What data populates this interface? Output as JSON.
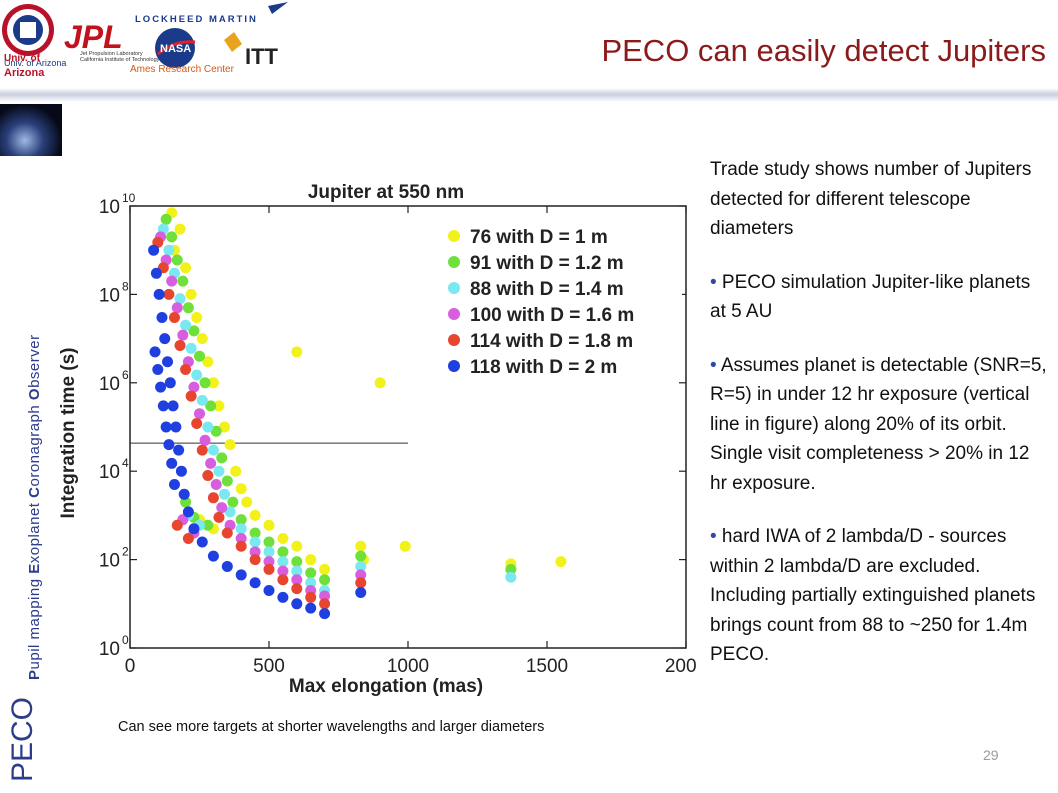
{
  "logos": {
    "univ_label_1": "Univ. of",
    "univ_label_2": "Arizona",
    "univ_small": "Univ. of Arizona",
    "jpl": "JPL",
    "jpl_sub1": "Jet Propulsion Laboratory",
    "jpl_sub2": "California Institute of Technology",
    "lockheed": "LOCKHEED MARTIN",
    "nasa": "NASA",
    "ames": "Ames Research Center",
    "itt": "ITT"
  },
  "slide_title": "PECO can easily detect Jupiters",
  "side_tag": {
    "big": "PECO",
    "small_parts": [
      {
        "cap": "P",
        "rest": "upil mapping "
      },
      {
        "cap": "E",
        "rest": "xoplanet "
      },
      {
        "cap": "C",
        "rest": "oronagraph "
      },
      {
        "cap": "O",
        "rest": "bserver"
      }
    ]
  },
  "colors": {
    "title": "#8b1a1a",
    "accent": "#2d3d8c",
    "yellow": "#f2f21a",
    "green": "#6fe03a",
    "cyan": "#7ae8f0",
    "magenta": "#d85ee0",
    "red": "#e8452e",
    "blue": "#1f3fe0"
  },
  "chart_data": {
    "type": "scatter",
    "title": "Jupiter at 550 nm",
    "xlabel": "Max elongation (mas)",
    "ylabel": "Integration time (s)",
    "xlim": [
      0,
      2000
    ],
    "ylim_log10": [
      0,
      10
    ],
    "y_scale": "log",
    "x_ticks": [
      "0",
      "500",
      "1000",
      "1500",
      "2000"
    ],
    "y_tick_exponents": [
      "0",
      "2",
      "4",
      "6",
      "8",
      "10"
    ],
    "y_tick_base": "10",
    "threshold_line": {
      "y": 43200,
      "x_range": [
        0,
        1000
      ]
    },
    "legend_position": "top-right",
    "series": [
      {
        "name": "76 with D = 1 m",
        "color": "#f2f21a",
        "points": [
          [
            150,
            7000000000.0
          ],
          [
            180,
            3000000000.0
          ],
          [
            160,
            1000000000.0
          ],
          [
            200,
            400000000.0
          ],
          [
            220,
            100000000.0
          ],
          [
            240,
            30000000.0
          ],
          [
            260,
            10000000.0
          ],
          [
            280,
            3000000.0
          ],
          [
            300,
            1000000.0
          ],
          [
            320,
            300000.0
          ],
          [
            340,
            100000.0
          ],
          [
            360,
            40000.0
          ],
          [
            380,
            10000.0
          ],
          [
            400,
            4000.0
          ],
          [
            420,
            2000.0
          ],
          [
            450,
            1000.0
          ],
          [
            500,
            600
          ],
          [
            550,
            300
          ],
          [
            600,
            200
          ],
          [
            650,
            100
          ],
          [
            700,
            60
          ],
          [
            830,
            200
          ],
          [
            900,
            1000000.0
          ],
          [
            600,
            5000000.0
          ],
          [
            990,
            200
          ],
          [
            1370,
            80
          ],
          [
            1550,
            90
          ],
          [
            840,
            100
          ],
          [
            300,
            500
          ],
          [
            250,
            800
          ]
        ]
      },
      {
        "name": "91 with D = 1.2 m",
        "color": "#6fe03a",
        "points": [
          [
            130,
            5000000000.0
          ],
          [
            150,
            2000000000.0
          ],
          [
            170,
            600000000.0
          ],
          [
            190,
            200000000.0
          ],
          [
            210,
            50000000.0
          ],
          [
            230,
            15000000.0
          ],
          [
            250,
            4000000.0
          ],
          [
            270,
            1000000.0
          ],
          [
            290,
            300000.0
          ],
          [
            310,
            80000.0
          ],
          [
            330,
            20000.0
          ],
          [
            350,
            6000.0
          ],
          [
            370,
            2000.0
          ],
          [
            400,
            800
          ],
          [
            450,
            400
          ],
          [
            500,
            250
          ],
          [
            550,
            150
          ],
          [
            600,
            90
          ],
          [
            650,
            50
          ],
          [
            700,
            35
          ],
          [
            830,
            120
          ],
          [
            1370,
            60
          ],
          [
            280,
            600
          ],
          [
            230,
            900
          ],
          [
            200,
            2000.0
          ]
        ]
      },
      {
        "name": "88 with D = 1.4 m",
        "color": "#7ae8f0",
        "points": [
          [
            120,
            3000000000.0
          ],
          [
            140,
            1000000000.0
          ],
          [
            160,
            300000000.0
          ],
          [
            180,
            80000000.0
          ],
          [
            200,
            20000000.0
          ],
          [
            220,
            6000000.0
          ],
          [
            240,
            1500000.0
          ],
          [
            260,
            400000.0
          ],
          [
            280,
            100000.0
          ],
          [
            300,
            30000.0
          ],
          [
            320,
            10000.0
          ],
          [
            340,
            3000.0
          ],
          [
            360,
            1200.0
          ],
          [
            400,
            500
          ],
          [
            450,
            250
          ],
          [
            500,
            150
          ],
          [
            550,
            90
          ],
          [
            600,
            55
          ],
          [
            650,
            30
          ],
          [
            700,
            20
          ],
          [
            830,
            70
          ],
          [
            1370,
            40
          ],
          [
            250,
            600
          ],
          [
            210,
            1000.0
          ]
        ]
      },
      {
        "name": "100 with D = 1.6 m",
        "color": "#d85ee0",
        "points": [
          [
            110,
            2000000000.0
          ],
          [
            130,
            600000000.0
          ],
          [
            150,
            200000000.0
          ],
          [
            170,
            50000000.0
          ],
          [
            190,
            12000000.0
          ],
          [
            210,
            3000000.0
          ],
          [
            230,
            800000.0
          ],
          [
            250,
            200000.0
          ],
          [
            270,
            50000.0
          ],
          [
            290,
            15000.0
          ],
          [
            310,
            5000.0
          ],
          [
            330,
            1500.0
          ],
          [
            360,
            600
          ],
          [
            400,
            300
          ],
          [
            450,
            150
          ],
          [
            500,
            90
          ],
          [
            550,
            55
          ],
          [
            600,
            35
          ],
          [
            650,
            20
          ],
          [
            700,
            15
          ],
          [
            830,
            45
          ],
          [
            230,
            400
          ],
          [
            190,
            800
          ]
        ]
      },
      {
        "name": "114 with D = 1.8 m",
        "color": "#e8452e",
        "points": [
          [
            100,
            1500000000.0
          ],
          [
            120,
            400000000.0
          ],
          [
            140,
            100000000.0
          ],
          [
            160,
            30000000.0
          ],
          [
            180,
            7000000.0
          ],
          [
            200,
            2000000.0
          ],
          [
            220,
            500000.0
          ],
          [
            240,
            120000.0
          ],
          [
            260,
            30000.0
          ],
          [
            280,
            8000.0
          ],
          [
            300,
            2500.0
          ],
          [
            320,
            900
          ],
          [
            350,
            400
          ],
          [
            400,
            200
          ],
          [
            450,
            100
          ],
          [
            500,
            60
          ],
          [
            550,
            35
          ],
          [
            600,
            22
          ],
          [
            650,
            14
          ],
          [
            700,
            10
          ],
          [
            830,
            30
          ],
          [
            210,
            300
          ],
          [
            170,
            600
          ]
        ]
      },
      {
        "name": "118 with D = 2 m",
        "color": "#1f3fe0",
        "points": [
          [
            85,
            1000000000.0
          ],
          [
            95,
            300000000.0
          ],
          [
            105,
            100000000.0
          ],
          [
            115,
            30000000.0
          ],
          [
            125,
            10000000.0
          ],
          [
            135,
            3000000.0
          ],
          [
            145,
            1000000.0
          ],
          [
            155,
            300000.0
          ],
          [
            165,
            100000.0
          ],
          [
            175,
            30000.0
          ],
          [
            185,
            10000.0
          ],
          [
            195,
            3000.0
          ],
          [
            210,
            1200.0
          ],
          [
            230,
            500
          ],
          [
            260,
            250
          ],
          [
            300,
            120
          ],
          [
            350,
            70
          ],
          [
            400,
            45
          ],
          [
            450,
            30
          ],
          [
            500,
            20
          ],
          [
            550,
            14
          ],
          [
            600,
            10
          ],
          [
            650,
            8
          ],
          [
            700,
            6
          ],
          [
            830,
            18
          ],
          [
            90,
            5000000.0
          ],
          [
            100,
            2000000.0
          ],
          [
            110,
            800000.0
          ],
          [
            120,
            300000.0
          ],
          [
            130,
            100000.0
          ],
          [
            140,
            40000.0
          ],
          [
            150,
            15000.0
          ],
          [
            160,
            5000.0
          ]
        ]
      }
    ]
  },
  "bullets": [
    {
      "bullet": "",
      "text": "Trade study shows number of Jupiters detected for different telescope diameters"
    },
    {
      "bullet": "•",
      "text": " PECO simulation Jupiter-like planets at 5 AU"
    },
    {
      "bullet": "•",
      "text": " Assumes planet is detectable (SNR=5, R=5) in under 12 hr exposure (vertical line in figure) along 20% of its orbit. Single visit completeness > 20% in 12 hr exposure."
    },
    {
      "bullet": "•",
      "text": " hard IWA of 2 lambda/D - sources within 2 lambda/D are excluded. Including partially extinguished planets brings count from 88 to ~250 for 1.4m PECO."
    }
  ],
  "caption": "Can see more targets at shorter wavelengths and larger diameters",
  "page_number": "29"
}
